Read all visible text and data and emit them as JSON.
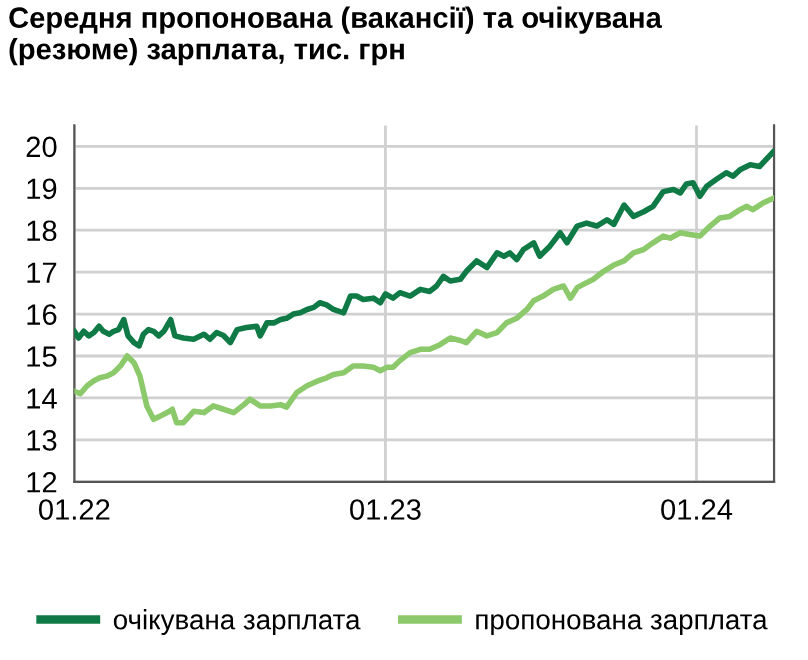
{
  "chart_data": {
    "type": "line",
    "title": "Середня пропонована (вакансії) та очікувана\n(резюме) зарплата, тис. грн",
    "xlim": [
      "2022-01-01",
      "2024-04-01"
    ],
    "xticks": [
      {
        "value": "2022-01-01",
        "label": "01.22"
      },
      {
        "value": "2023-01-01",
        "label": "01.23"
      },
      {
        "value": "2024-01-01",
        "label": "01.24"
      }
    ],
    "ylim": [
      12,
      20.5
    ],
    "yticks": [
      12,
      13,
      14,
      15,
      16,
      17,
      18,
      19,
      20
    ],
    "grid": true,
    "legend": "bottom",
    "line_style": "solid",
    "series": [
      {
        "name": "очікувана зарплата",
        "color": "#0f7a45",
        "x": [
          "2022-01-01",
          "2022-01-06",
          "2022-01-12",
          "2022-01-18",
          "2022-01-24",
          "2022-01-30",
          "2022-02-04",
          "2022-02-11",
          "2022-02-16",
          "2022-02-22",
          "2022-02-28",
          "2022-03-05",
          "2022-03-12",
          "2022-03-18",
          "2022-03-23",
          "2022-03-29",
          "2022-04-04",
          "2022-04-10",
          "2022-04-16",
          "2022-04-24",
          "2022-04-29",
          "2022-05-09",
          "2022-05-21",
          "2022-06-02",
          "2022-06-09",
          "2022-06-17",
          "2022-06-25",
          "2022-07-03",
          "2022-07-11",
          "2022-07-22",
          "2022-08-03",
          "2022-08-07",
          "2022-08-15",
          "2022-08-23",
          "2022-08-31",
          "2022-09-07",
          "2022-09-15",
          "2022-09-23",
          "2022-10-01",
          "2022-10-09",
          "2022-10-16",
          "2022-10-24",
          "2022-11-01",
          "2022-11-13",
          "2022-11-21",
          "2022-11-28",
          "2022-12-06",
          "2022-12-18",
          "2022-12-26",
          "2023-01-01",
          "2023-01-10",
          "2023-01-18",
          "2023-01-30",
          "2023-02-11",
          "2023-02-22",
          "2023-03-02",
          "2023-03-10",
          "2023-03-18",
          "2023-03-30",
          "2023-04-06",
          "2023-04-18",
          "2023-04-30",
          "2023-05-12",
          "2023-05-20",
          "2023-05-27",
          "2023-06-04",
          "2023-06-12",
          "2023-06-24",
          "2023-07-01",
          "2023-07-13",
          "2023-07-25",
          "2023-08-02",
          "2023-08-14",
          "2023-08-25",
          "2023-09-06",
          "2023-09-18",
          "2023-09-26",
          "2023-10-08",
          "2023-10-19",
          "2023-10-31",
          "2023-11-11",
          "2023-11-23",
          "2023-12-05",
          "2023-12-13",
          "2023-12-20",
          "2023-12-28",
          "2024-01-05",
          "2024-01-13",
          "2024-01-24",
          "2024-02-05",
          "2024-02-13",
          "2024-02-21",
          "2024-03-04",
          "2024-03-15",
          "2024-03-31"
        ],
        "values": [
          15.59,
          15.43,
          15.59,
          15.48,
          15.56,
          15.71,
          15.59,
          15.52,
          15.59,
          15.63,
          15.87,
          15.48,
          15.32,
          15.24,
          15.52,
          15.63,
          15.59,
          15.48,
          15.59,
          15.87,
          15.48,
          15.43,
          15.4,
          15.52,
          15.4,
          15.56,
          15.49,
          15.32,
          15.63,
          15.68,
          15.71,
          15.48,
          15.79,
          15.79,
          15.87,
          15.9,
          16.0,
          16.03,
          16.11,
          16.16,
          16.27,
          16.22,
          16.11,
          16.03,
          16.43,
          16.43,
          16.35,
          16.38,
          16.27,
          16.48,
          16.38,
          16.51,
          16.43,
          16.59,
          16.54,
          16.67,
          16.9,
          16.79,
          16.83,
          17.02,
          17.27,
          17.11,
          17.46,
          17.38,
          17.46,
          17.3,
          17.54,
          17.7,
          17.38,
          17.62,
          17.94,
          17.7,
          18.1,
          18.17,
          18.1,
          18.25,
          18.14,
          18.6,
          18.33,
          18.44,
          18.57,
          18.92,
          18.97,
          18.89,
          19.1,
          19.13,
          18.81,
          19.05,
          19.21,
          19.37,
          19.29,
          19.44,
          19.56,
          19.52,
          19.87
        ]
      },
      {
        "name": "пропонована зарплата",
        "color": "#8cc96a",
        "x": [
          "2022-01-01",
          "2022-01-08",
          "2022-01-16",
          "2022-01-24",
          "2022-01-31",
          "2022-02-08",
          "2022-02-16",
          "2022-02-24",
          "2022-03-04",
          "2022-03-12",
          "2022-03-19",
          "2022-03-27",
          "2022-04-04",
          "2022-04-12",
          "2022-04-20",
          "2022-04-26",
          "2022-05-01",
          "2022-05-09",
          "2022-05-21",
          "2022-06-02",
          "2022-06-13",
          "2022-06-25",
          "2022-07-07",
          "2022-07-19",
          "2022-07-26",
          "2022-08-07",
          "2022-08-19",
          "2022-08-31",
          "2022-09-07",
          "2022-09-19",
          "2022-10-01",
          "2022-10-13",
          "2022-10-24",
          "2022-11-01",
          "2022-11-13",
          "2022-11-24",
          "2022-12-06",
          "2022-12-18",
          "2022-12-26",
          "2023-01-03",
          "2023-01-10",
          "2023-01-18",
          "2023-01-30",
          "2023-02-11",
          "2023-02-22",
          "2023-03-06",
          "2023-03-18",
          "2023-03-30",
          "2023-04-06",
          "2023-04-18",
          "2023-04-30",
          "2023-05-12",
          "2023-05-23",
          "2023-06-04",
          "2023-06-16",
          "2023-06-24",
          "2023-07-05",
          "2023-07-17",
          "2023-07-29",
          "2023-08-06",
          "2023-08-14",
          "2023-08-25",
          "2023-09-02",
          "2023-09-14",
          "2023-09-26",
          "2023-10-08",
          "2023-10-19",
          "2023-10-31",
          "2023-11-11",
          "2023-11-23",
          "2023-12-01",
          "2023-12-13",
          "2023-12-24",
          "2024-01-05",
          "2024-01-17",
          "2024-01-28",
          "2024-02-09",
          "2024-02-21",
          "2024-02-29",
          "2024-03-07",
          "2024-03-19",
          "2024-03-31"
        ],
        "values": [
          14.16,
          14.1,
          14.29,
          14.41,
          14.48,
          14.52,
          14.6,
          14.76,
          15.0,
          14.84,
          14.52,
          13.81,
          13.49,
          13.57,
          13.65,
          13.73,
          13.41,
          13.41,
          13.68,
          13.65,
          13.81,
          13.73,
          13.65,
          13.84,
          13.97,
          13.81,
          13.81,
          13.84,
          13.78,
          14.13,
          14.29,
          14.4,
          14.48,
          14.56,
          14.6,
          14.76,
          14.76,
          14.73,
          14.65,
          14.73,
          14.73,
          14.89,
          15.08,
          15.16,
          15.16,
          15.27,
          15.43,
          15.37,
          15.32,
          15.59,
          15.48,
          15.56,
          15.79,
          15.9,
          16.11,
          16.32,
          16.43,
          16.59,
          16.67,
          16.38,
          16.63,
          16.75,
          16.83,
          17.02,
          17.17,
          17.27,
          17.46,
          17.54,
          17.7,
          17.86,
          17.81,
          17.94,
          17.9,
          17.86,
          18.1,
          18.29,
          18.33,
          18.49,
          18.57,
          18.49,
          18.65,
          18.76
        ]
      }
    ]
  }
}
